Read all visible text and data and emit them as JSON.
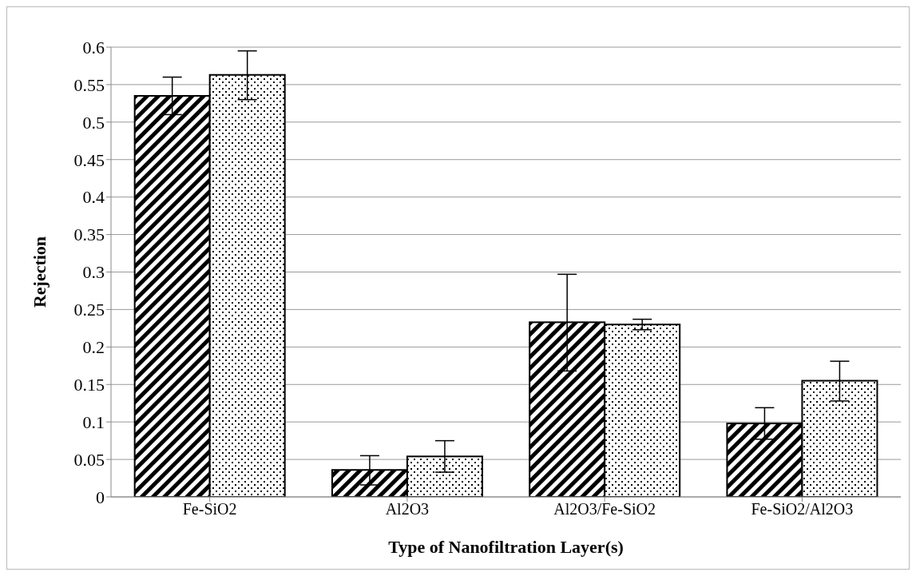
{
  "chart_data": {
    "type": "bar",
    "xlabel": "Type of Nanofiltration Layer(s)",
    "ylabel": "Rejection",
    "categories": [
      "Fe-SiO2",
      "Al2O3",
      "Al2O3/Fe-SiO2",
      "Fe-SiO2/Al2O3"
    ],
    "series": [
      {
        "color": "#000000",
        "values": [
          0.535,
          0.036,
          0.233,
          0.098
        ],
        "errors": [
          [
            0.51,
            0.56
          ],
          [
            0.016,
            0.055
          ],
          [
            0.168,
            0.297
          ],
          [
            0.077,
            0.119
          ]
        ]
      },
      {
        "color": "#ffffff",
        "values": [
          0.563,
          0.054,
          0.23,
          0.155
        ],
        "errors": [
          [
            0.53,
            0.595
          ],
          [
            0.033,
            0.075
          ],
          [
            0.223,
            0.237
          ],
          [
            0.128,
            0.181
          ]
        ]
      }
    ],
    "ylim": [
      0,
      0.6
    ],
    "yticks": [
      0,
      0.05,
      0.1,
      0.15,
      0.2,
      0.25,
      0.3,
      0.35,
      0.4,
      0.45,
      0.5,
      0.55,
      0.6
    ],
    "grid": "y"
  }
}
